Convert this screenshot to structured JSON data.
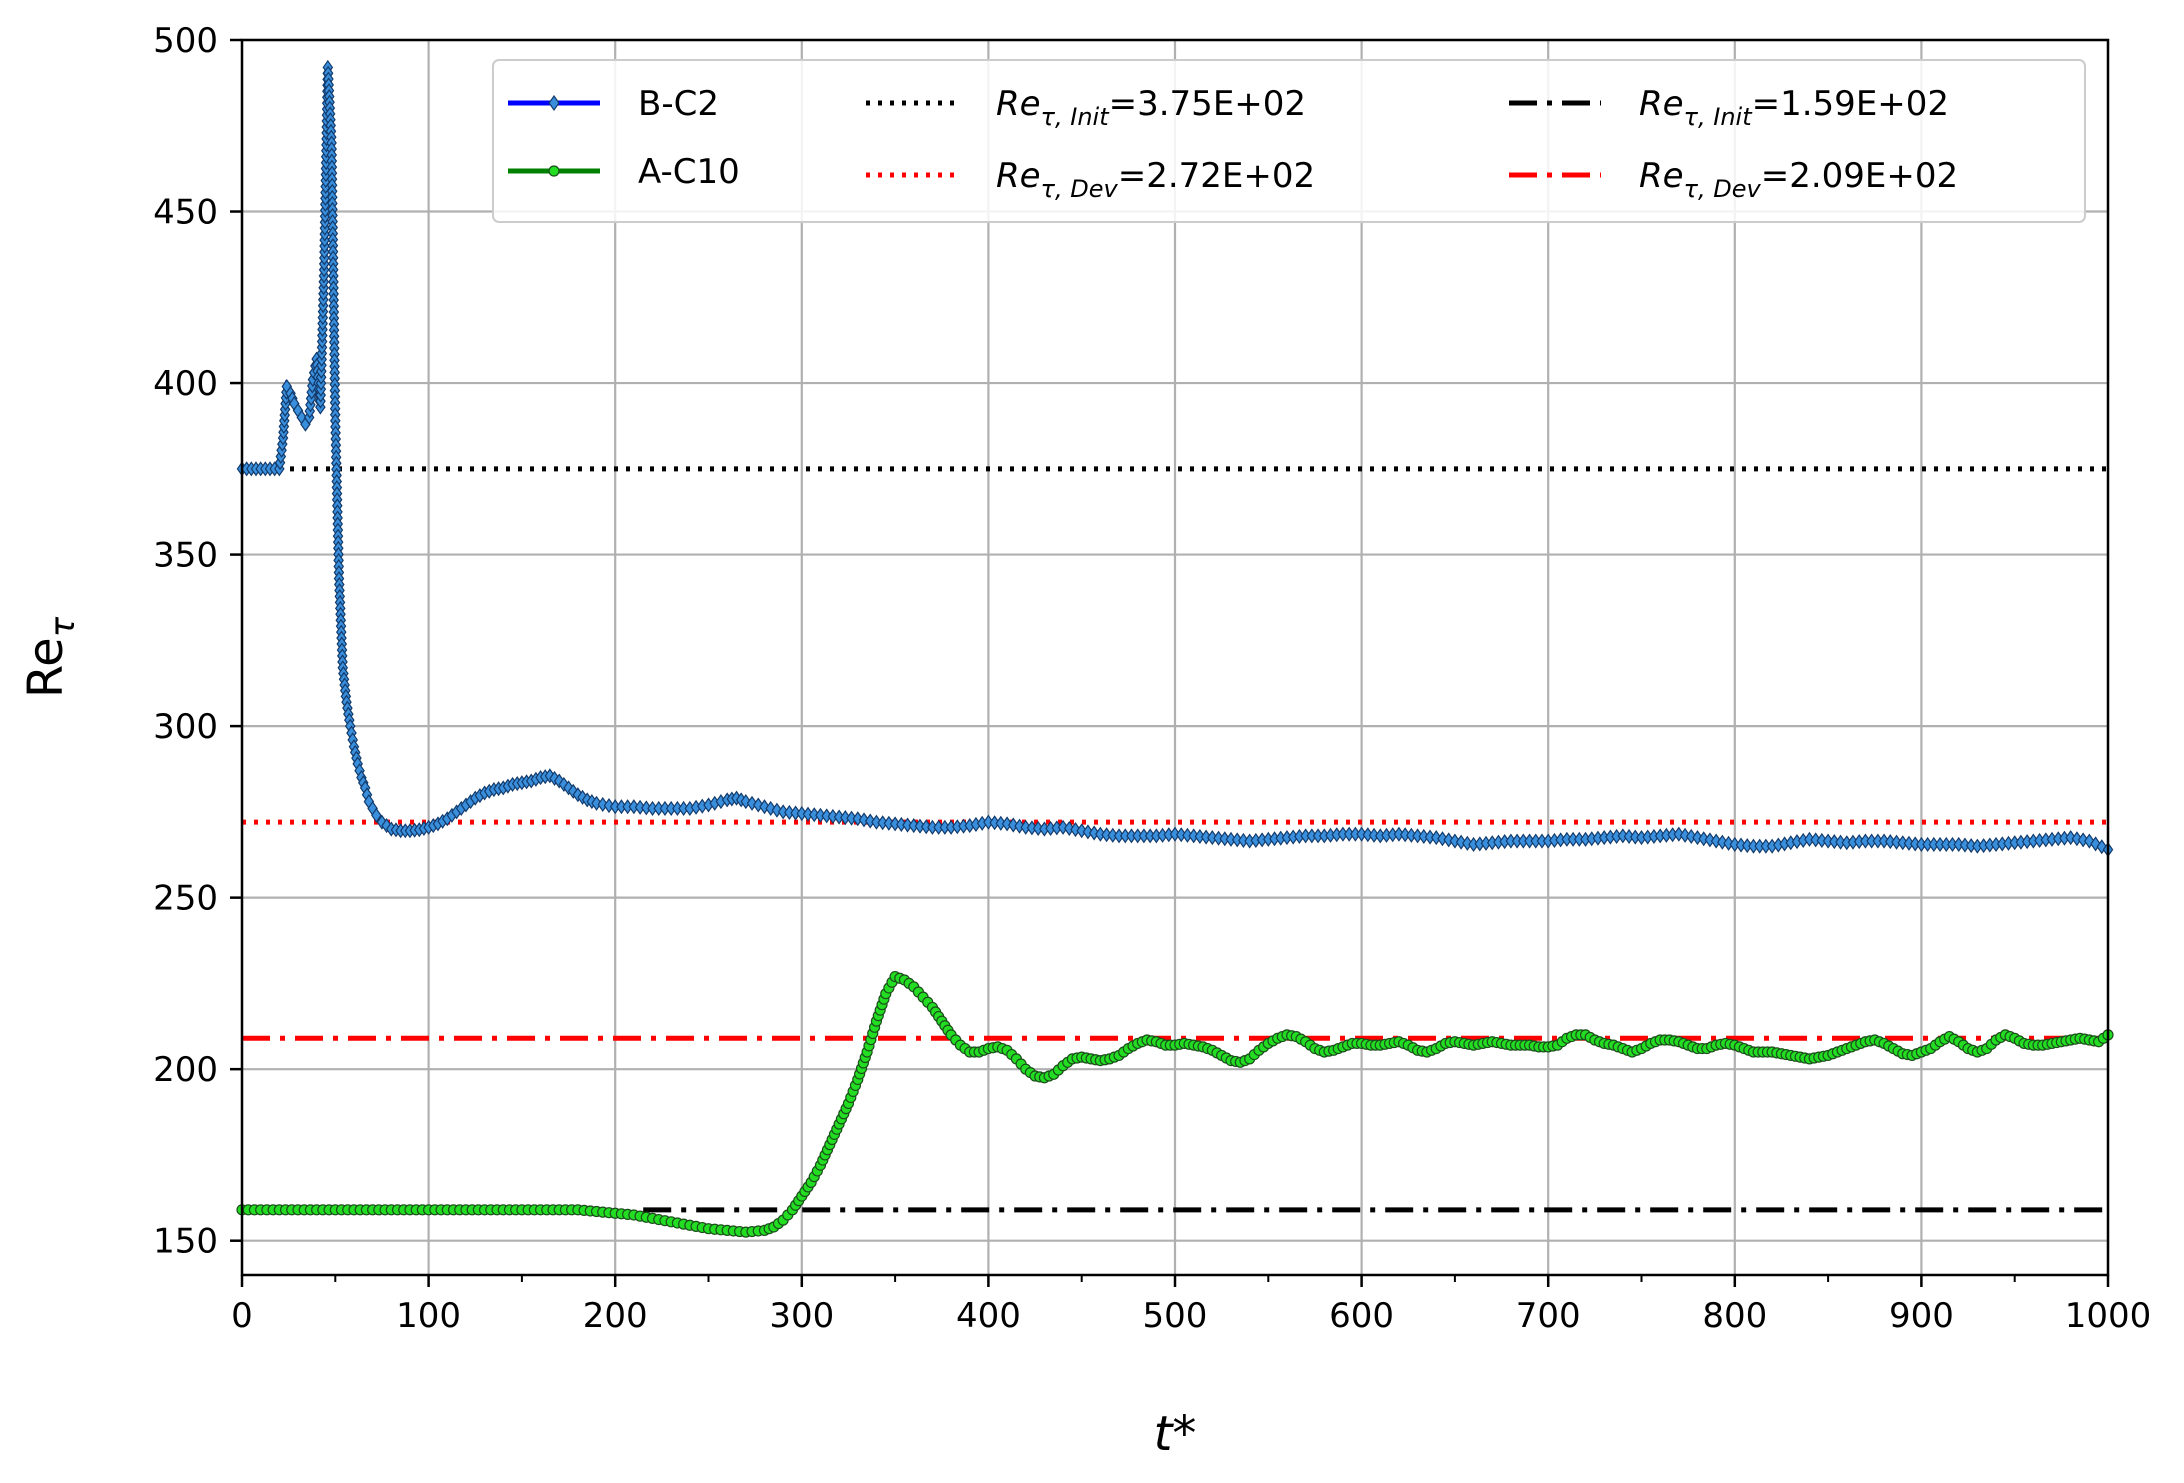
{
  "chart_data": {
    "type": "line",
    "title": "",
    "xlabel": "t*",
    "ylabel": "Re",
    "ylabel_sub": "τ",
    "xlim": [
      0,
      1000
    ],
    "ylim": [
      140,
      500
    ],
    "xticks": [
      0,
      100,
      200,
      300,
      400,
      500,
      600,
      700,
      800,
      900,
      1000
    ],
    "xtick_labels": [
      "0",
      "100",
      "200",
      "300",
      "400",
      "500",
      "600",
      "700",
      "800",
      "900",
      "1000"
    ],
    "yticks": [
      150,
      200,
      250,
      300,
      350,
      400,
      450,
      500
    ],
    "ytick_labels": [
      "150",
      "200",
      "250",
      "300",
      "350",
      "400",
      "450",
      "500"
    ],
    "grid": true,
    "legend_position": "top-right",
    "series": [
      {
        "name": "B-C2",
        "color": "#0000ff",
        "marker_color": "#3a8fdc",
        "marker": "diamond",
        "points": [
          [
            0,
            375
          ],
          [
            5,
            375
          ],
          [
            10,
            375
          ],
          [
            15,
            375
          ],
          [
            20,
            375
          ],
          [
            22,
            384
          ],
          [
            24,
            399
          ],
          [
            26,
            397
          ],
          [
            28,
            394
          ],
          [
            30,
            392
          ],
          [
            32,
            390
          ],
          [
            34,
            388
          ],
          [
            36,
            390
          ],
          [
            38,
            401
          ],
          [
            40,
            407
          ],
          [
            42,
            393
          ],
          [
            44,
            433
          ],
          [
            46,
            492
          ],
          [
            48,
            470
          ],
          [
            50,
            389
          ],
          [
            52,
            343
          ],
          [
            54,
            317
          ],
          [
            56,
            307
          ],
          [
            58,
            300
          ],
          [
            60,
            294
          ],
          [
            62,
            289
          ],
          [
            64,
            285
          ],
          [
            66,
            282
          ],
          [
            68,
            278
          ],
          [
            70,
            276
          ],
          [
            72,
            274
          ],
          [
            75,
            272
          ],
          [
            80,
            270
          ],
          [
            85,
            269.5
          ],
          [
            90,
            269.5
          ],
          [
            95,
            269.8
          ],
          [
            100,
            270.5
          ],
          [
            105,
            271.5
          ],
          [
            110,
            273
          ],
          [
            115,
            275
          ],
          [
            120,
            277
          ],
          [
            125,
            279
          ],
          [
            130,
            280.5
          ],
          [
            135,
            281.5
          ],
          [
            140,
            282
          ],
          [
            145,
            283
          ],
          [
            150,
            283.5
          ],
          [
            155,
            284
          ],
          [
            160,
            285
          ],
          [
            165,
            285.5
          ],
          [
            170,
            284
          ],
          [
            175,
            282
          ],
          [
            180,
            280
          ],
          [
            185,
            278.5
          ],
          [
            190,
            277.5
          ],
          [
            200,
            276.5
          ],
          [
            210,
            276.5
          ],
          [
            220,
            276
          ],
          [
            230,
            276
          ],
          [
            240,
            276
          ],
          [
            250,
            277
          ],
          [
            260,
            278.5
          ],
          [
            265,
            279
          ],
          [
            270,
            278
          ],
          [
            280,
            276.5
          ],
          [
            290,
            275
          ],
          [
            300,
            274.5
          ],
          [
            310,
            274
          ],
          [
            320,
            273.5
          ],
          [
            330,
            273
          ],
          [
            340,
            272
          ],
          [
            350,
            271.5
          ],
          [
            360,
            271
          ],
          [
            370,
            270.5
          ],
          [
            380,
            270.5
          ],
          [
            390,
            271
          ],
          [
            400,
            272
          ],
          [
            410,
            271.5
          ],
          [
            420,
            270.5
          ],
          [
            430,
            270
          ],
          [
            440,
            270.5
          ],
          [
            450,
            269.5
          ],
          [
            460,
            268.5
          ],
          [
            470,
            268
          ],
          [
            480,
            268
          ],
          [
            490,
            268
          ],
          [
            500,
            268.5
          ],
          [
            510,
            268
          ],
          [
            520,
            267.5
          ],
          [
            530,
            267
          ],
          [
            540,
            266.5
          ],
          [
            550,
            267
          ],
          [
            560,
            267.5
          ],
          [
            570,
            268
          ],
          [
            580,
            268
          ],
          [
            590,
            268.5
          ],
          [
            600,
            268.5
          ],
          [
            610,
            268
          ],
          [
            620,
            268.5
          ],
          [
            630,
            268
          ],
          [
            640,
            267.5
          ],
          [
            650,
            266.5
          ],
          [
            660,
            265.5
          ],
          [
            670,
            266
          ],
          [
            680,
            266.5
          ],
          [
            690,
            266.5
          ],
          [
            700,
            266.5
          ],
          [
            710,
            267
          ],
          [
            720,
            267
          ],
          [
            730,
            267.5
          ],
          [
            740,
            268
          ],
          [
            750,
            267.5
          ],
          [
            760,
            268
          ],
          [
            770,
            268.5
          ],
          [
            780,
            267.5
          ],
          [
            790,
            266.5
          ],
          [
            800,
            265.5
          ],
          [
            810,
            265
          ],
          [
            820,
            265
          ],
          [
            830,
            266
          ],
          [
            840,
            267
          ],
          [
            850,
            266.5
          ],
          [
            860,
            266
          ],
          [
            870,
            266.5
          ],
          [
            880,
            266.5
          ],
          [
            890,
            266
          ],
          [
            900,
            265.5
          ],
          [
            910,
            265.5
          ],
          [
            920,
            265.5
          ],
          [
            930,
            265
          ],
          [
            940,
            265.5
          ],
          [
            950,
            266
          ],
          [
            960,
            266.5
          ],
          [
            970,
            267
          ],
          [
            980,
            267.5
          ],
          [
            990,
            266.5
          ],
          [
            1000,
            264
          ]
        ]
      },
      {
        "name": "A-C10",
        "color": "#008000",
        "marker_color": "#22dd22",
        "marker": "circle",
        "points": [
          [
            0,
            159
          ],
          [
            20,
            159
          ],
          [
            40,
            159
          ],
          [
            60,
            159
          ],
          [
            80,
            159
          ],
          [
            100,
            159
          ],
          [
            120,
            159
          ],
          [
            140,
            159
          ],
          [
            160,
            159
          ],
          [
            180,
            159
          ],
          [
            190,
            158.5
          ],
          [
            200,
            158
          ],
          [
            210,
            157.5
          ],
          [
            220,
            156.5
          ],
          [
            230,
            155.5
          ],
          [
            240,
            154.5
          ],
          [
            250,
            153.5
          ],
          [
            260,
            153
          ],
          [
            270,
            152.5
          ],
          [
            280,
            153
          ],
          [
            285,
            154
          ],
          [
            290,
            156
          ],
          [
            295,
            159
          ],
          [
            300,
            163
          ],
          [
            305,
            167
          ],
          [
            310,
            172
          ],
          [
            315,
            178
          ],
          [
            320,
            184
          ],
          [
            325,
            190
          ],
          [
            330,
            197
          ],
          [
            335,
            205
          ],
          [
            340,
            214
          ],
          [
            345,
            222
          ],
          [
            350,
            227
          ],
          [
            355,
            226
          ],
          [
            360,
            224
          ],
          [
            365,
            221
          ],
          [
            370,
            218
          ],
          [
            375,
            214
          ],
          [
            380,
            210
          ],
          [
            385,
            207
          ],
          [
            390,
            205
          ],
          [
            395,
            205
          ],
          [
            400,
            206
          ],
          [
            405,
            206.5
          ],
          [
            410,
            205.5
          ],
          [
            415,
            203
          ],
          [
            420,
            200
          ],
          [
            425,
            198
          ],
          [
            430,
            197.5
          ],
          [
            435,
            198.5
          ],
          [
            440,
            201
          ],
          [
            445,
            203
          ],
          [
            450,
            203.5
          ],
          [
            455,
            203
          ],
          [
            460,
            202.5
          ],
          [
            465,
            203
          ],
          [
            470,
            204
          ],
          [
            475,
            206
          ],
          [
            480,
            207.5
          ],
          [
            485,
            208.5
          ],
          [
            490,
            208
          ],
          [
            495,
            207
          ],
          [
            500,
            207
          ],
          [
            505,
            207.5
          ],
          [
            510,
            207
          ],
          [
            515,
            206.5
          ],
          [
            520,
            205.5
          ],
          [
            525,
            204
          ],
          [
            530,
            202.5
          ],
          [
            535,
            202
          ],
          [
            540,
            203
          ],
          [
            545,
            205.5
          ],
          [
            550,
            207.5
          ],
          [
            555,
            209
          ],
          [
            560,
            210
          ],
          [
            565,
            209.5
          ],
          [
            570,
            208
          ],
          [
            575,
            206
          ],
          [
            580,
            205
          ],
          [
            585,
            205.5
          ],
          [
            590,
            206.5
          ],
          [
            595,
            207.5
          ],
          [
            600,
            207.5
          ],
          [
            605,
            207
          ],
          [
            610,
            207
          ],
          [
            615,
            207.5
          ],
          [
            620,
            208
          ],
          [
            625,
            207
          ],
          [
            630,
            205.5
          ],
          [
            635,
            205
          ],
          [
            640,
            206
          ],
          [
            645,
            207.5
          ],
          [
            650,
            208
          ],
          [
            655,
            207.5
          ],
          [
            660,
            207
          ],
          [
            665,
            207.5
          ],
          [
            670,
            208
          ],
          [
            675,
            207.5
          ],
          [
            680,
            207
          ],
          [
            685,
            207
          ],
          [
            690,
            207
          ],
          [
            695,
            206.5
          ],
          [
            700,
            206.5
          ],
          [
            705,
            207
          ],
          [
            710,
            209
          ],
          [
            715,
            210
          ],
          [
            720,
            210
          ],
          [
            725,
            208.5
          ],
          [
            730,
            207.5
          ],
          [
            735,
            207
          ],
          [
            740,
            206
          ],
          [
            745,
            205
          ],
          [
            750,
            206
          ],
          [
            755,
            207.5
          ],
          [
            760,
            208.5
          ],
          [
            765,
            208.5
          ],
          [
            770,
            208
          ],
          [
            775,
            207
          ],
          [
            780,
            206
          ],
          [
            785,
            206
          ],
          [
            790,
            207
          ],
          [
            795,
            207.5
          ],
          [
            800,
            207
          ],
          [
            805,
            206
          ],
          [
            810,
            205
          ],
          [
            815,
            205
          ],
          [
            820,
            205
          ],
          [
            825,
            204.5
          ],
          [
            830,
            204
          ],
          [
            835,
            203.5
          ],
          [
            840,
            203
          ],
          [
            845,
            203.5
          ],
          [
            850,
            204
          ],
          [
            855,
            205
          ],
          [
            860,
            206
          ],
          [
            865,
            207
          ],
          [
            870,
            208
          ],
          [
            875,
            208.5
          ],
          [
            880,
            207.5
          ],
          [
            885,
            206
          ],
          [
            890,
            204.5
          ],
          [
            895,
            204
          ],
          [
            900,
            205
          ],
          [
            905,
            206
          ],
          [
            910,
            208
          ],
          [
            915,
            209.5
          ],
          [
            920,
            208
          ],
          [
            925,
            206
          ],
          [
            930,
            205
          ],
          [
            935,
            206
          ],
          [
            940,
            208.5
          ],
          [
            945,
            210
          ],
          [
            950,
            209
          ],
          [
            955,
            207.5
          ],
          [
            960,
            207
          ],
          [
            965,
            207
          ],
          [
            970,
            207.5
          ],
          [
            975,
            208
          ],
          [
            980,
            208.5
          ],
          [
            985,
            209
          ],
          [
            990,
            208.5
          ],
          [
            995,
            208
          ],
          [
            1000,
            210
          ]
        ]
      }
    ],
    "reference_lines": [
      {
        "legend_main": "Re",
        "legend_sub": "τ, Init",
        "legend_value": "=3.75E+02",
        "y": 375,
        "x_start": 0,
        "color": "#000000",
        "style": "dotted"
      },
      {
        "legend_main": "Re",
        "legend_sub": "τ, Dev",
        "legend_value": "=2.72E+02",
        "y": 272,
        "x_start": 0,
        "color": "#ff0000",
        "style": "dotted"
      },
      {
        "legend_main": "Re",
        "legend_sub": "τ, Init",
        "legend_value": "=1.59E+02",
        "y": 159,
        "x_start": 215,
        "color": "#000000",
        "style": "dashdot"
      },
      {
        "legend_main": "Re",
        "legend_sub": "τ, Dev",
        "legend_value": "=2.09E+02",
        "y": 209,
        "x_start": 0,
        "color": "#ff0000",
        "style": "dashdot"
      }
    ]
  }
}
